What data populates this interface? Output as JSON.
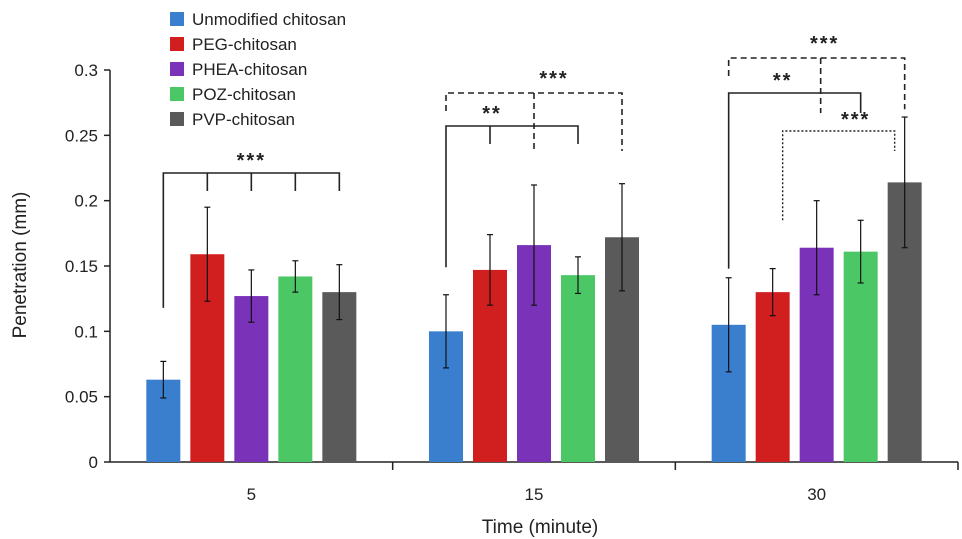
{
  "chart_data": {
    "type": "bar",
    "title": "",
    "xlabel": "Time (minute)",
    "ylabel": "Penetration (mm)",
    "ylim": [
      0,
      0.3
    ],
    "yticks": [
      {
        "value": 0,
        "label": "0"
      },
      {
        "value": 0.05,
        "label": "0.05"
      },
      {
        "value": 0.1,
        "label": "0.1"
      },
      {
        "value": 0.15,
        "label": "0.15"
      },
      {
        "value": 0.2,
        "label": "0.2"
      },
      {
        "value": 0.25,
        "label": "0.25"
      },
      {
        "value": 0.3,
        "label": "0.3"
      }
    ],
    "categories": [
      "5",
      "15",
      "30"
    ],
    "legend_position": "top-left",
    "grid": false,
    "series": [
      {
        "name": "Unmodified chitosan",
        "color": "#3a7fce",
        "values": [
          0.063,
          0.1,
          0.105
        ],
        "errors": [
          0.014,
          0.028,
          0.036
        ]
      },
      {
        "name": "PEG-chitosan",
        "color": "#d11f1f",
        "values": [
          0.159,
          0.147,
          0.13
        ],
        "errors": [
          0.036,
          0.027,
          0.018
        ]
      },
      {
        "name": "PHEA-chitosan",
        "color": "#7a33b8",
        "values": [
          0.127,
          0.166,
          0.164
        ],
        "errors": [
          0.02,
          0.046,
          0.036
        ]
      },
      {
        "name": "POZ-chitosan",
        "color": "#4cc766",
        "values": [
          0.142,
          0.143,
          0.161
        ],
        "errors": [
          0.012,
          0.014,
          0.024
        ]
      },
      {
        "name": "PVP-chitosan",
        "color": "#5a5a5a",
        "values": [
          0.13,
          0.172,
          0.214
        ],
        "errors": [
          0.021,
          0.041,
          0.05
        ]
      }
    ],
    "annotations": [
      {
        "label": "***",
        "category": "5",
        "style": "solid"
      },
      {
        "label": "**",
        "category": "15",
        "style": "solid"
      },
      {
        "label": "***",
        "category": "15",
        "style": "dashed"
      },
      {
        "label": "**",
        "category": "30",
        "style": "solid"
      },
      {
        "label": "***",
        "category": "30",
        "style": "dashed"
      },
      {
        "label": "***",
        "category": "30",
        "style": "dotted"
      }
    ]
  }
}
